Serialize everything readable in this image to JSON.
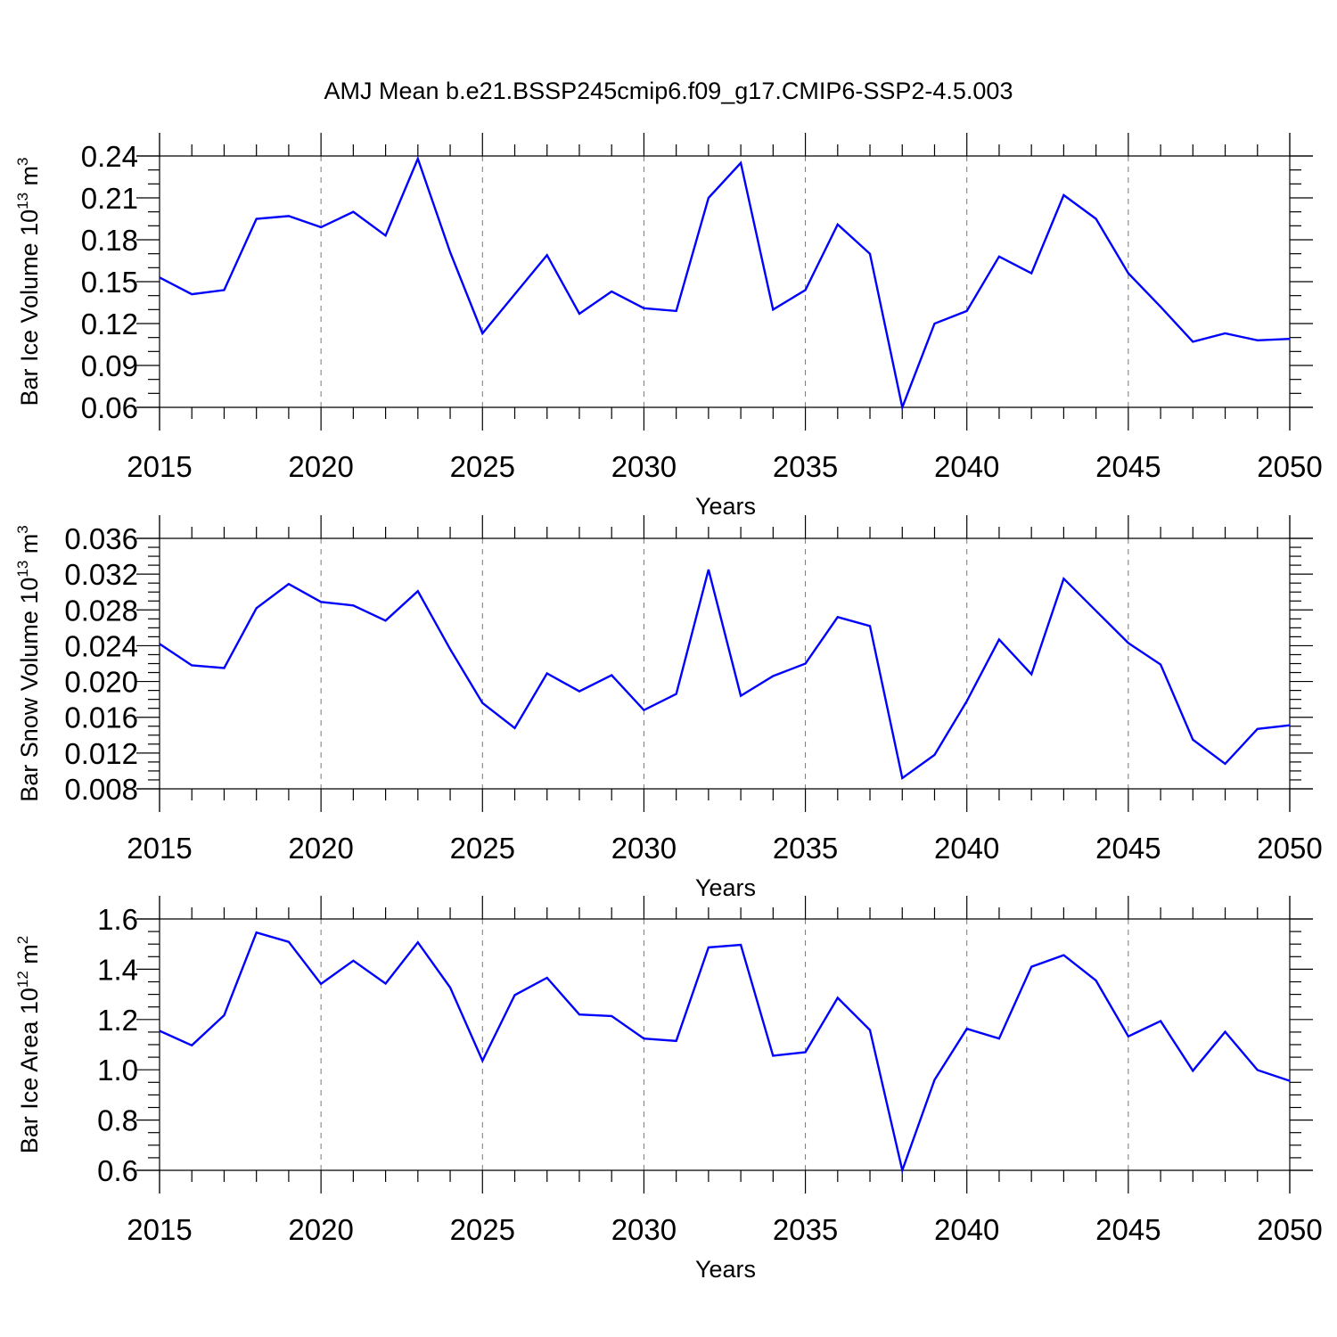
{
  "title": "AMJ Mean b.e21.BSSP245cmip6.f09_g17.CMIP6-SSP2-4.5.003",
  "line_color": "#0000ff",
  "chart_data": [
    {
      "type": "line",
      "ylabel": "Bar Ice Volume 10",
      "ylabel_exp": "13",
      "ylabel_unit": " m",
      "ylabel_unit_exp": "3",
      "xlabel": "Years",
      "xlim": [
        2015,
        2050
      ],
      "ylim": [
        0.06,
        0.24
      ],
      "yticks": [
        0.06,
        0.09,
        0.12,
        0.15,
        0.18,
        0.21,
        0.24
      ],
      "ytick_labels": [
        "0.06",
        "0.09",
        "0.12",
        "0.15",
        "0.18",
        "0.21",
        "0.24"
      ],
      "yminor_step": 0.01,
      "xticks": [
        2015,
        2020,
        2025,
        2030,
        2035,
        2040,
        2045,
        2050
      ],
      "xtick_labels": [
        "2015",
        "2020",
        "2025",
        "2030",
        "2035",
        "2040",
        "2045",
        "2050"
      ],
      "x": [
        2015,
        2016,
        2017,
        2018,
        2019,
        2020,
        2021,
        2022,
        2023,
        2024,
        2025,
        2026,
        2027,
        2028,
        2029,
        2030,
        2031,
        2032,
        2033,
        2034,
        2035,
        2036,
        2037,
        2038,
        2039,
        2040,
        2041,
        2042,
        2043,
        2044,
        2045,
        2046,
        2047,
        2048,
        2049,
        2050
      ],
      "values": [
        0.153,
        0.141,
        0.144,
        0.195,
        0.197,
        0.189,
        0.2,
        0.183,
        0.238,
        0.171,
        0.113,
        0.141,
        0.169,
        0.127,
        0.143,
        0.131,
        0.129,
        0.21,
        0.235,
        0.13,
        0.144,
        0.191,
        0.17,
        0.06,
        0.12,
        0.129,
        0.168,
        0.156,
        0.212,
        0.195,
        0.156,
        0.132,
        0.107,
        0.113,
        0.108,
        0.109
      ]
    },
    {
      "type": "line",
      "ylabel": "Bar Snow Volume 10",
      "ylabel_exp": "13",
      "ylabel_unit": " m",
      "ylabel_unit_exp": "3",
      "xlabel": "Years",
      "xlim": [
        2015,
        2050
      ],
      "ylim": [
        0.008,
        0.036
      ],
      "yticks": [
        0.008,
        0.012,
        0.016,
        0.02,
        0.024,
        0.028,
        0.032,
        0.036
      ],
      "ytick_labels": [
        "0.008",
        "0.012",
        "0.016",
        "0.020",
        "0.024",
        "0.028",
        "0.032",
        "0.036"
      ],
      "yminor_step": 0.001,
      "xticks": [
        2015,
        2020,
        2025,
        2030,
        2035,
        2040,
        2045,
        2050
      ],
      "xtick_labels": [
        "2015",
        "2020",
        "2025",
        "2030",
        "2035",
        "2040",
        "2045",
        "2050"
      ],
      "x": [
        2015,
        2016,
        2017,
        2018,
        2019,
        2020,
        2021,
        2022,
        2023,
        2024,
        2025,
        2026,
        2027,
        2028,
        2029,
        2030,
        2031,
        2032,
        2033,
        2034,
        2035,
        2036,
        2037,
        2038,
        2039,
        2040,
        2041,
        2042,
        2043,
        2044,
        2045,
        2046,
        2047,
        2048,
        2049,
        2050
      ],
      "values": [
        0.0242,
        0.0218,
        0.0215,
        0.0282,
        0.0309,
        0.0289,
        0.0285,
        0.0268,
        0.0301,
        0.0236,
        0.0176,
        0.0148,
        0.0209,
        0.0189,
        0.0207,
        0.0168,
        0.0186,
        0.0325,
        0.0184,
        0.0206,
        0.022,
        0.0272,
        0.0262,
        0.0092,
        0.0118,
        0.0178,
        0.0247,
        0.0208,
        0.0315,
        0.0279,
        0.0243,
        0.0219,
        0.0135,
        0.0108,
        0.0147,
        0.0151
      ]
    },
    {
      "type": "line",
      "ylabel": "Bar Ice Area 10",
      "ylabel_exp": "12",
      "ylabel_unit": " m",
      "ylabel_unit_exp": "2",
      "xlabel": "Years",
      "xlim": [
        2015,
        2050
      ],
      "ylim": [
        0.6,
        1.6
      ],
      "yticks": [
        0.6,
        0.8,
        1.0,
        1.2,
        1.4,
        1.6
      ],
      "ytick_labels": [
        "0.6",
        "0.8",
        "1.0",
        "1.2",
        "1.4",
        "1.6"
      ],
      "yminor_step": 0.05,
      "xticks": [
        2015,
        2020,
        2025,
        2030,
        2035,
        2040,
        2045,
        2050
      ],
      "xtick_labels": [
        "2015",
        "2020",
        "2025",
        "2030",
        "2035",
        "2040",
        "2045",
        "2050"
      ],
      "x": [
        2015,
        2016,
        2017,
        2018,
        2019,
        2020,
        2021,
        2022,
        2023,
        2024,
        2025,
        2026,
        2027,
        2028,
        2029,
        2030,
        2031,
        2032,
        2033,
        2034,
        2035,
        2036,
        2037,
        2038,
        2039,
        2040,
        2041,
        2042,
        2043,
        2044,
        2045,
        2046,
        2047,
        2048,
        2049,
        2050
      ],
      "values": [
        1.155,
        1.097,
        1.217,
        1.546,
        1.509,
        1.342,
        1.434,
        1.343,
        1.507,
        1.327,
        1.036,
        1.297,
        1.366,
        1.22,
        1.214,
        1.124,
        1.115,
        1.487,
        1.497,
        1.056,
        1.07,
        1.286,
        1.158,
        0.6,
        0.96,
        1.163,
        1.124,
        1.41,
        1.456,
        1.355,
        1.133,
        1.194,
        0.996,
        1.151,
        0.999,
        0.956
      ]
    }
  ]
}
